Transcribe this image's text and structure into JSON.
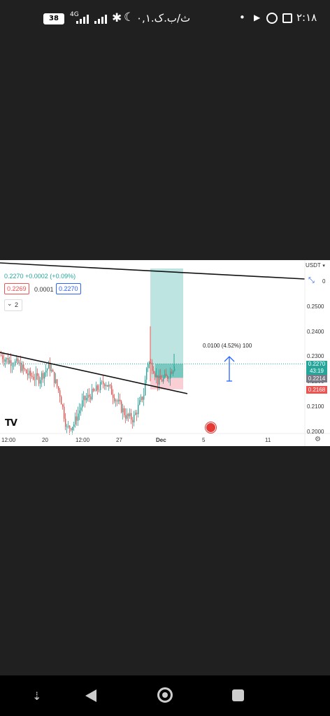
{
  "status": {
    "battery": "38",
    "network": "4G",
    "date_text": "ث/ب.ک.۰,۱",
    "time": "۲:۱۸",
    "dot": "•"
  },
  "chart": {
    "currency": "USDT",
    "currency_zero": "0",
    "price_line": "0.2270 +0.0002 (+0.09%)",
    "bid": "0.2269",
    "spread": "0.0001",
    "ask": "0.2270",
    "indicator_count": "2",
    "y_ticks": [
      "0.2500",
      "0.2400",
      "0.2300",
      "0.2200",
      "0.2100",
      "0.2000"
    ],
    "x_ticks": [
      "12:00",
      "20",
      "12:00",
      "27",
      "Dec",
      "5",
      "11"
    ],
    "measure_label": "0.0100 (4.52%) 100",
    "last_price": "0.2270",
    "countdown": "43:19",
    "entry_price": "0.2214",
    "stop_price": "0.2168",
    "logo": "TV",
    "colors": {
      "up": "#26a69a",
      "down": "#ef5350",
      "target_zone": "#b2dfdb",
      "stop_zone": "#f8c6cc",
      "measure": "#2962ff"
    }
  }
}
